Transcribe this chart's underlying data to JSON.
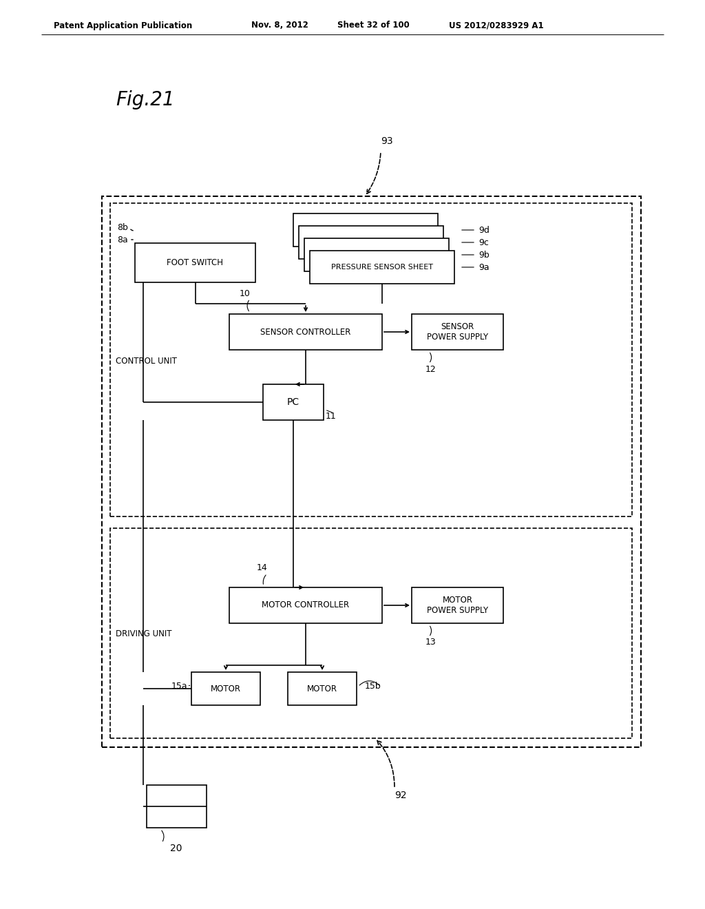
{
  "fig_label": "Fig.21",
  "header_left": "Patent Application Publication",
  "header_date": "Nov. 8, 2012",
  "header_sheet": "Sheet 32 of 100",
  "header_right": "US 2012/0283929 A1",
  "bg_color": "#ffffff",
  "text_color": "#000000",
  "box_color": "#000000"
}
